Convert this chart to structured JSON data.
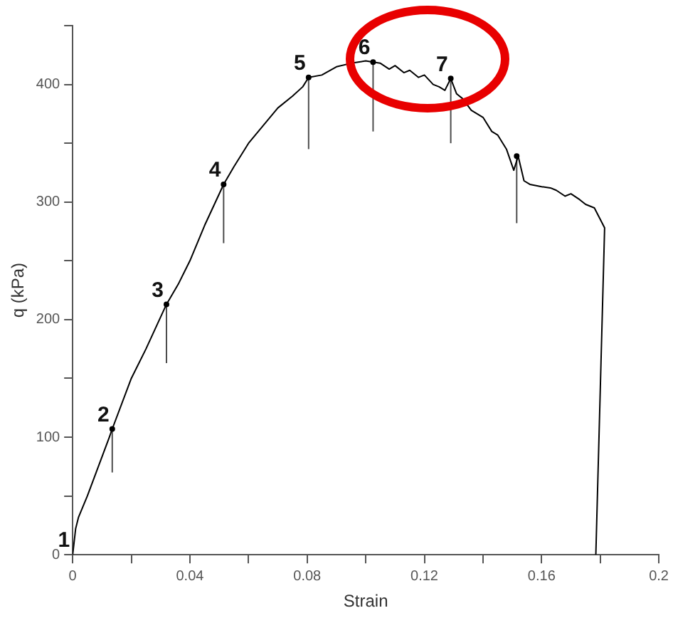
{
  "chart_data": {
    "type": "line",
    "xlabel": "Strain",
    "ylabel": "q (kPa)",
    "xlim": [
      0,
      0.2
    ],
    "ylim": [
      0,
      450
    ],
    "xticks": [
      0,
      {
        "value": 0.02,
        "label": null
      },
      0.04,
      {
        "value": 0.06,
        "label": null
      },
      0.08,
      {
        "value": 0.1,
        "label": null
      },
      0.12,
      {
        "value": 0.14,
        "label": null
      },
      0.16,
      {
        "value": 0.18,
        "label": null
      },
      0.2
    ],
    "yticks": [
      0,
      {
        "value": 50,
        "label": null
      },
      100,
      {
        "value": 150,
        "label": null
      },
      200,
      {
        "value": 250,
        "label": null
      },
      300,
      {
        "value": 350,
        "label": null
      },
      400,
      {
        "value": 450,
        "label": null
      }
    ],
    "grid": false,
    "legend": false,
    "line_style": "solid",
    "series": [
      {
        "type": "line",
        "color": "#000000",
        "marker": "none",
        "x": [
          0,
          0.001,
          0.002,
          0.005,
          0.008,
          0.0125,
          0.0135,
          0.02,
          0.025,
          0.032,
          0.036,
          0.04,
          0.045,
          0.0515,
          0.055,
          0.06,
          0.065,
          0.07,
          0.075,
          0.0785,
          0.0805,
          0.085,
          0.09,
          0.095,
          0.1,
          0.1025,
          0.105,
          0.108,
          0.11,
          0.113,
          0.115,
          0.118,
          0.12,
          0.123,
          0.125,
          0.127,
          0.129,
          0.131,
          0.133,
          0.136,
          0.14,
          0.143,
          0.145,
          0.148,
          0.1505,
          0.152,
          0.154,
          0.156,
          0.16,
          0.163,
          0.165,
          0.168,
          0.17,
          0.173,
          0.175,
          0.178,
          0.1815,
          0.1785
        ],
        "values": [
          0,
          22,
          32,
          50,
          70,
          100,
          107,
          150,
          175,
          213,
          230,
          250,
          280,
          315,
          330,
          350,
          365,
          380,
          390,
          398,
          406,
          408,
          415,
          418,
          420,
          419,
          418,
          413,
          416,
          410,
          412,
          406,
          408,
          400,
          398,
          395,
          405,
          392,
          388,
          378,
          372,
          360,
          357,
          345,
          327,
          339,
          318,
          315,
          313,
          312,
          310,
          305,
          307,
          302,
          298,
          295,
          278,
          0
        ]
      },
      {
        "type": "scatter",
        "color": "#000000",
        "marker": "circle",
        "x": [
          0.0135,
          0.032,
          0.0515,
          0.0805,
          0.1025,
          0.129,
          0.1515
        ],
        "values": [
          107,
          213,
          315,
          406,
          419,
          405,
          339
        ],
        "errors": [
          [
            70,
            107
          ],
          [
            163,
            213
          ],
          [
            265,
            315
          ],
          [
            345,
            406
          ],
          [
            360,
            419
          ],
          [
            350,
            405
          ],
          [
            282,
            339
          ]
        ]
      }
    ],
    "annotations": [
      {
        "text": "1",
        "x": 0,
        "y": 0
      },
      {
        "text": "2",
        "x": 0.0135,
        "y": 107
      },
      {
        "text": "3",
        "x": 0.032,
        "y": 213
      },
      {
        "text": "4",
        "x": 0.0515,
        "y": 315
      },
      {
        "text": "5",
        "x": 0.0805,
        "y": 406
      },
      {
        "text": "6",
        "x": 0.1025,
        "y": 419
      },
      {
        "text": "7",
        "x": 0.129,
        "y": 405
      }
    ]
  }
}
